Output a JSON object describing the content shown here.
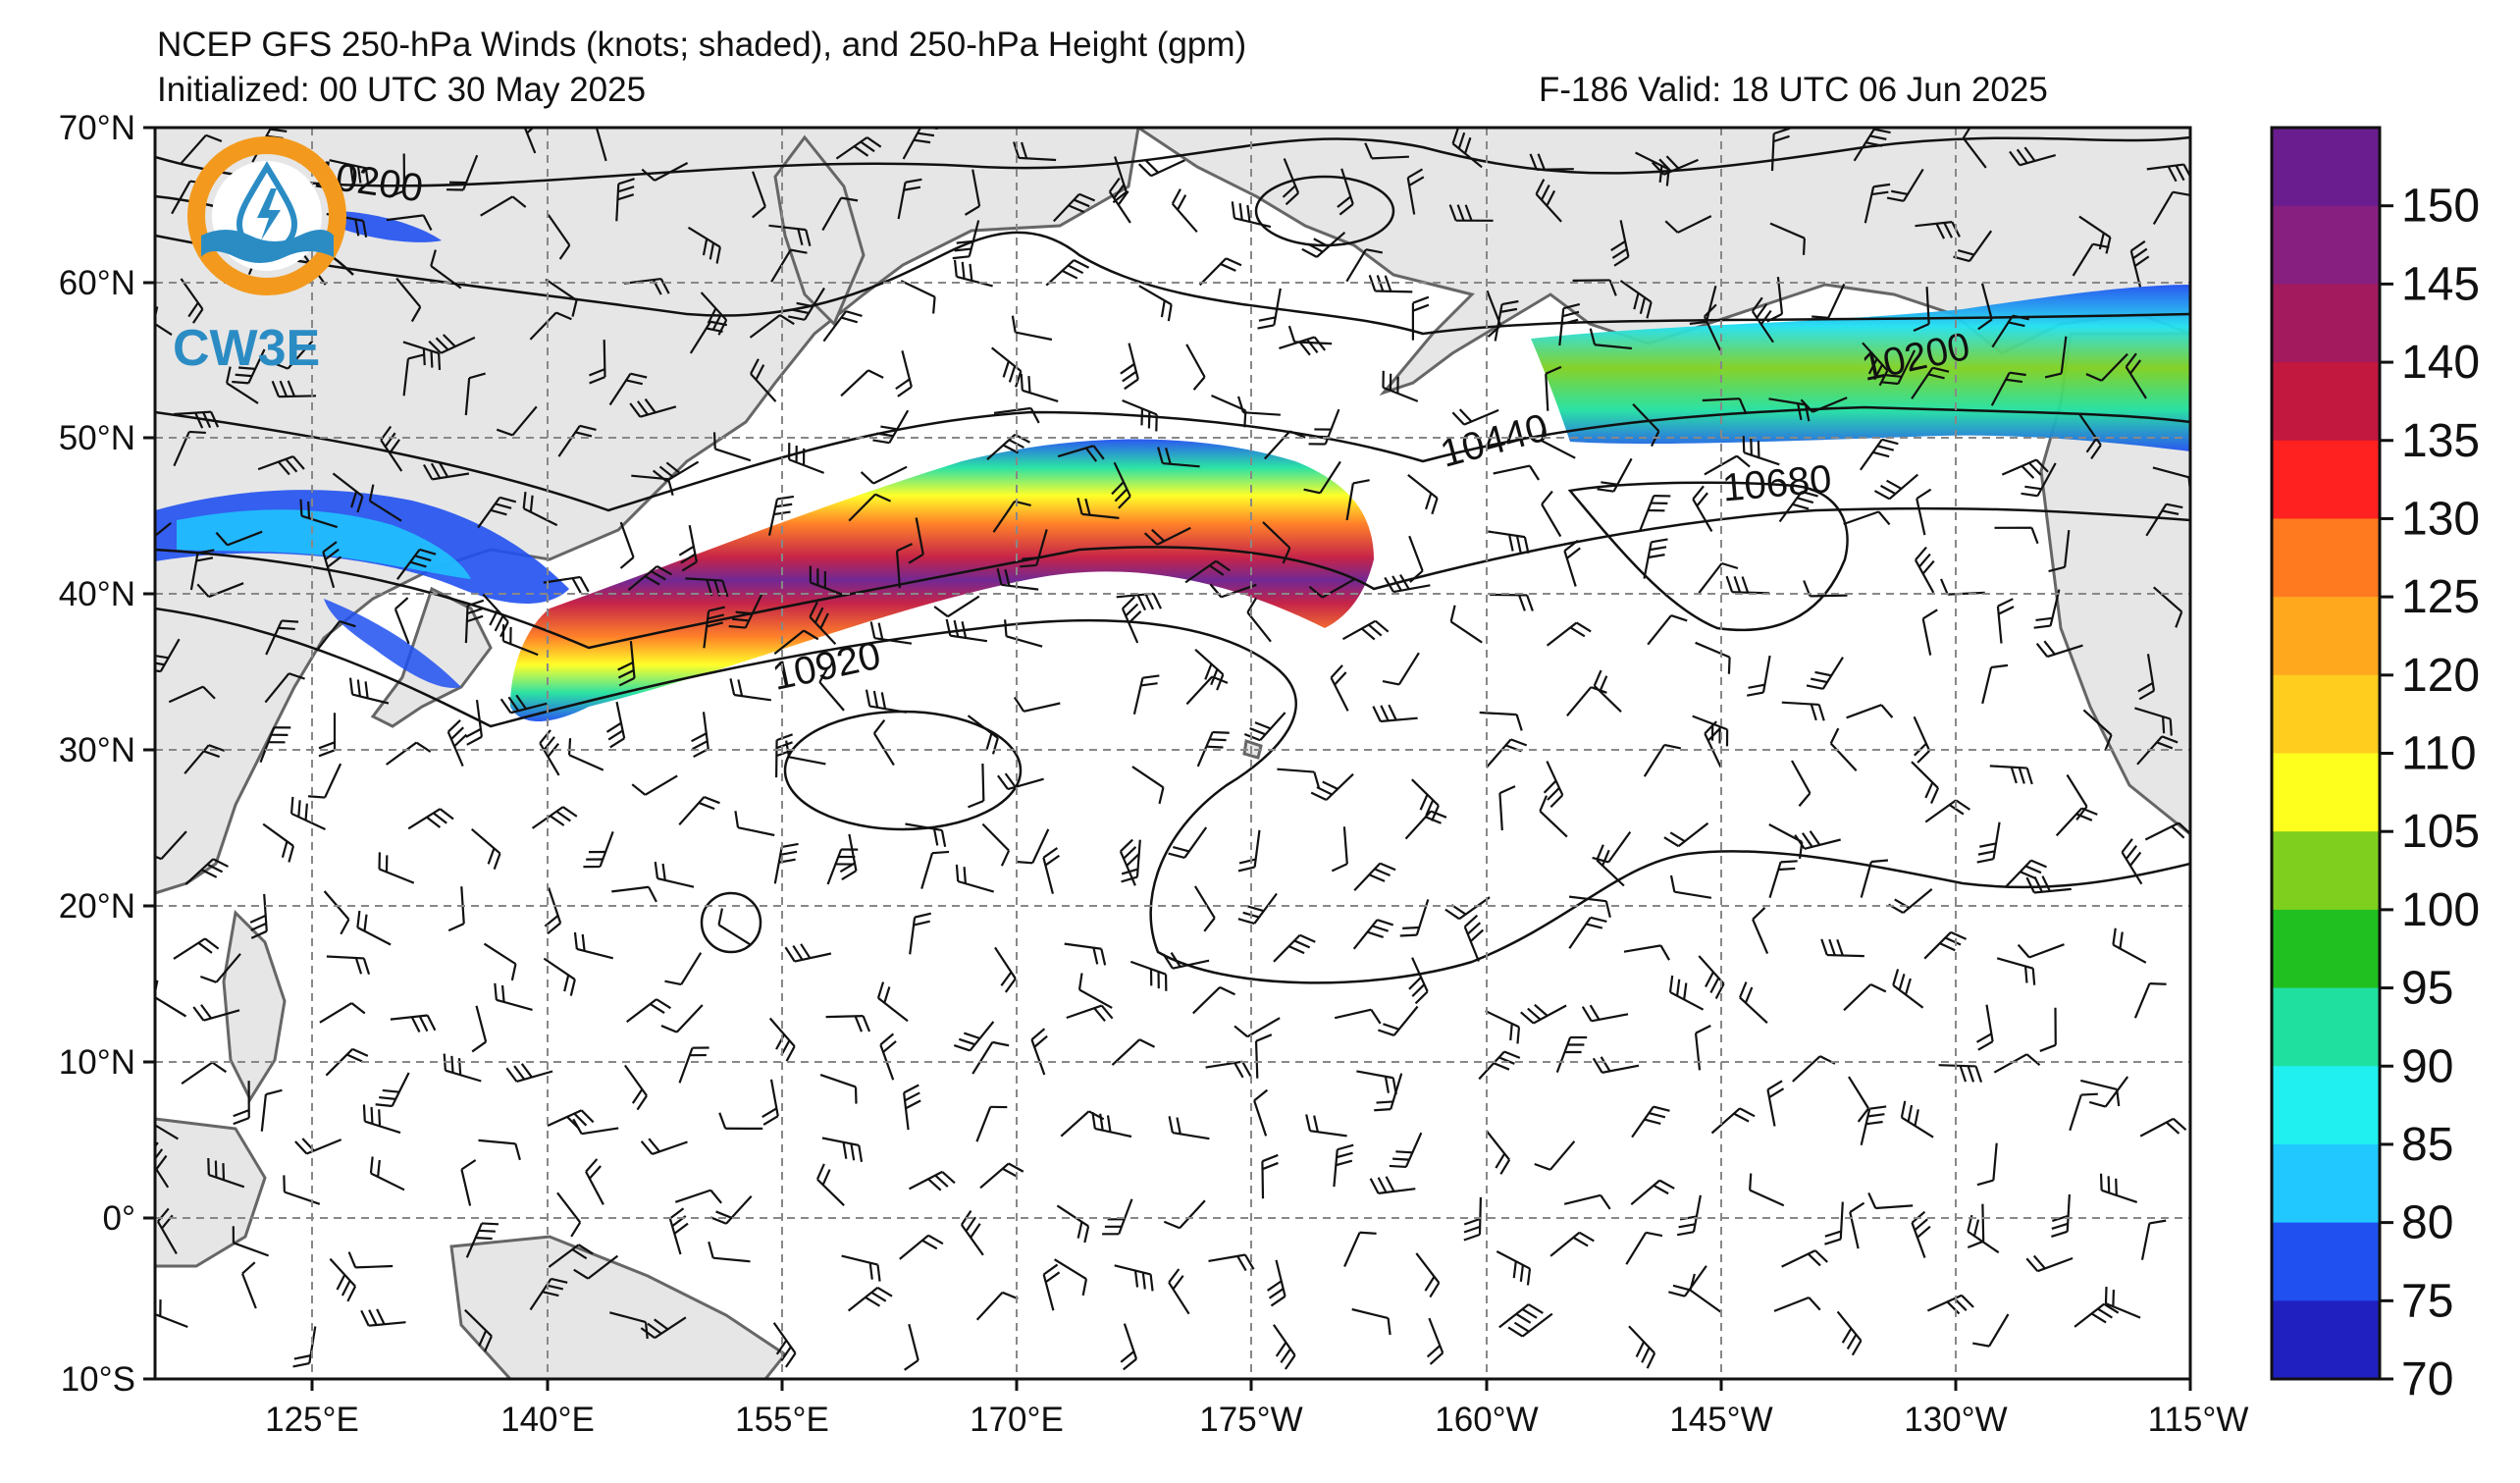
{
  "header": {
    "title": "NCEP GFS 250-hPa Winds (knots; shaded), and 250-hPa Height (gpm)",
    "initialized": "Initialized: 00 UTC 30 May 2025",
    "valid": "F-186  Valid: 18 UTC 06 Jun 2025"
  },
  "logo": {
    "text": "CW3E",
    "color": "#2b8cc4",
    "accent": "#f39a1e"
  },
  "map": {
    "latitude_labels": [
      "70°N",
      "60°N",
      "50°N",
      "40°N",
      "30°N",
      "20°N",
      "10°N",
      "0°",
      "10°S"
    ],
    "longitude_labels": [
      "125°E",
      "140°E",
      "155°E",
      "170°E",
      "175°W",
      "160°W",
      "145°W",
      "130°W",
      "115°W"
    ],
    "land_color": "#e6e6e6",
    "ocean_color": "#ffffff",
    "grid_style": "dashed-gray"
  },
  "contours": {
    "labels": [
      "10200",
      "10440",
      "10680",
      "10920",
      "10200"
    ]
  },
  "colorbar": {
    "levels": [
      "150",
      "145",
      "140",
      "135",
      "130",
      "125",
      "120",
      "110",
      "105",
      "100",
      "95",
      "90",
      "85",
      "80",
      "75",
      "70"
    ],
    "colors_top_to_bottom": [
      "#6a1d8e",
      "#861f80",
      "#a31a5e",
      "#c2183f",
      "#ff2020",
      "#ff7a1e",
      "#ffa81e",
      "#ffcd1e",
      "#ffff1e",
      "#7fd01e",
      "#20c020",
      "#20e0a0",
      "#20f0f0",
      "#20c8ff",
      "#2050f0",
      "#2020c0"
    ]
  }
}
